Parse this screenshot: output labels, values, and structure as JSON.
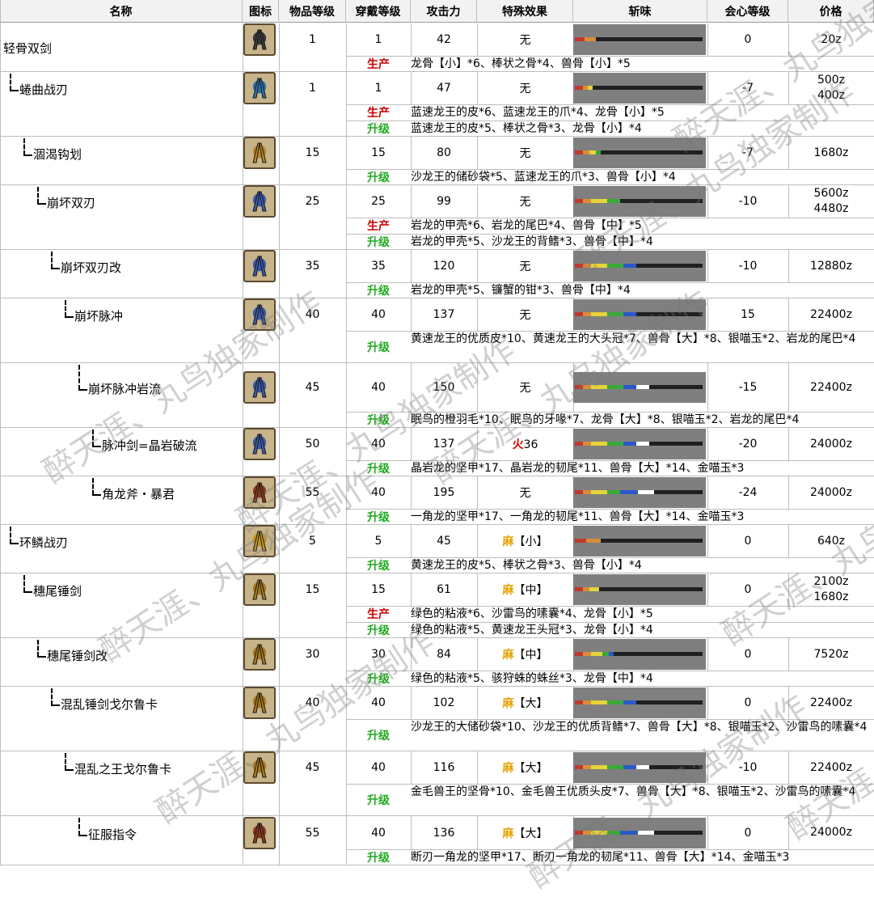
{
  "headers": [
    "名称",
    "图标",
    "物品等级",
    "穿戴等级",
    "攻击力",
    "特殊效果",
    "斩味",
    "会心等级",
    "价格"
  ],
  "colors": {
    "produce": "#cc0000",
    "upgrade": "#22aa22",
    "fire": "#dd0000",
    "paralysis": "#e6a100"
  },
  "watermark": "醉天涯、丸鸟独家制作",
  "weapons": [
    {
      "name": "轻骨双剑",
      "rarity": "1",
      "wear": "1",
      "attack": "42",
      "effect": "无",
      "effect_type": "none",
      "affinity": "0",
      "price": [
        "20z"
      ],
      "materials": [
        {
          "type": "生产",
          "text": "龙骨【小】*6、棒状之骨*4、兽骨【小】*5"
        }
      ],
      "sharpness": [
        [
          "#c0392b",
          12
        ],
        [
          "#d98c3a",
          14
        ]
      ],
      "icon": "twin-blades-icon",
      "icon_color": "#3a3a3a"
    },
    {
      "name": "蜷曲战刃",
      "rarity": "1",
      "wear": "1",
      "attack": "47",
      "effect": "无",
      "effect_type": "none",
      "affinity": "-7",
      "price": [
        "500z",
        "400z"
      ],
      "materials": [
        {
          "type": "生产",
          "text": "蓝速龙王的皮*6、蓝速龙王的爪*4、龙骨【小】*5"
        },
        {
          "type": "升级",
          "text": "蓝速龙王的皮*5、棒状之骨*3、龙骨【小】*4"
        }
      ],
      "sharpness": [
        [
          "#c0392b",
          10
        ],
        [
          "#d98c3a",
          6
        ],
        [
          "#e5d43a",
          6
        ]
      ],
      "icon": "curved-blades-icon",
      "icon_color": "#2e6fa8"
    },
    {
      "name": "涸渴钩划",
      "rarity": "15",
      "wear": "15",
      "attack": "80",
      "effect": "无",
      "effect_type": "none",
      "affinity": "-7",
      "price": [
        "1680z"
      ],
      "materials": [
        {
          "type": "升级",
          "text": "沙龙王的储砂袋*5、蓝速龙王的爪*3、兽骨【小】*4"
        }
      ],
      "sharpness": [
        [
          "#c0392b",
          10
        ],
        [
          "#d98c3a",
          8
        ],
        [
          "#e5d43a",
          8
        ],
        [
          "#3aa83a",
          6
        ]
      ],
      "icon": "hook-blades-icon",
      "icon_color": "#b8862a"
    },
    {
      "name": "崩坏双刃",
      "rarity": "25",
      "wear": "25",
      "attack": "99",
      "effect": "无",
      "effect_type": "none",
      "affinity": "-10",
      "price": [
        "5600z",
        "4480z"
      ],
      "materials": [
        {
          "type": "生产",
          "text": "岩龙的甲壳*6、岩龙的尾巴*4、兽骨【中】*5"
        },
        {
          "type": "升级",
          "text": "岩龙的甲壳*5、沙龙王的背鳍*3、兽骨【中】*4"
        }
      ],
      "sharpness": [
        [
          "#c0392b",
          10
        ],
        [
          "#d98c3a",
          10
        ],
        [
          "#e5d43a",
          20
        ],
        [
          "#3aa83a",
          16
        ]
      ],
      "icon": "wing-blades-icon",
      "icon_color": "#3a5aa8"
    },
    {
      "name": "崩坏双刃改",
      "rarity": "35",
      "wear": "35",
      "attack": "120",
      "effect": "无",
      "effect_type": "none",
      "affinity": "-10",
      "price": [
        "12880z"
      ],
      "materials": [
        {
          "type": "升级",
          "text": "岩龙的甲壳*5、镰蟹的钳*3、兽骨【中】*4"
        }
      ],
      "sharpness": [
        [
          "#c0392b",
          10
        ],
        [
          "#d98c3a",
          10
        ],
        [
          "#e5d43a",
          20
        ],
        [
          "#3aa83a",
          20
        ],
        [
          "#2a58c8",
          16
        ]
      ],
      "icon": "wing-blades-icon",
      "icon_color": "#3a5aa8"
    },
    {
      "name": "崩坏脉冲",
      "rarity": "40",
      "wear": "40",
      "attack": "137",
      "effect": "无",
      "effect_type": "none",
      "affinity": "15",
      "price": [
        "22400z"
      ],
      "materials": [
        {
          "type": "升级",
          "text": "黄速龙王的优质皮*10、黄速龙王的大头冠*7、兽骨【大】*8、银喵玉*2、岩龙的尾巴*4"
        }
      ],
      "sharpness": [
        [
          "#c0392b",
          10
        ],
        [
          "#d98c3a",
          10
        ],
        [
          "#e5d43a",
          20
        ],
        [
          "#3aa83a",
          20
        ],
        [
          "#2a58c8",
          16
        ]
      ],
      "icon": "wing-blades-icon",
      "icon_color": "#3a5aa8"
    },
    {
      "name": "崩坏脉冲岩流",
      "rarity": "45",
      "wear": "40",
      "attack": "150",
      "effect": "无",
      "effect_type": "none",
      "affinity": "-15",
      "price": [
        "22400z"
      ],
      "materials": [
        {
          "type": "升级",
          "text": "眠鸟的橙羽毛*10、眠鸟的牙喙*7、龙骨【大】*8、银喵玉*2、岩龙的尾巴*4"
        }
      ],
      "sharpness": [
        [
          "#c0392b",
          10
        ],
        [
          "#d98c3a",
          10
        ],
        [
          "#e5d43a",
          20
        ],
        [
          "#3aa83a",
          20
        ],
        [
          "#2a58c8",
          16
        ],
        [
          "#ffffff",
          16
        ]
      ],
      "icon": "wing-blades-icon",
      "icon_color": "#3a5aa8"
    },
    {
      "name": "脉冲剑=晶岩破流",
      "rarity": "50",
      "wear": "40",
      "attack": "137",
      "effect": "火36",
      "effect_type": "fire",
      "affinity": "-20",
      "price": [
        "24000z"
      ],
      "materials": [
        {
          "type": "升级",
          "text": "晶岩龙的坚甲*17、晶岩龙的韧尾*11、兽骨【大】*14、金喵玉*3"
        }
      ],
      "sharpness": [
        [
          "#c0392b",
          10
        ],
        [
          "#d98c3a",
          10
        ],
        [
          "#e5d43a",
          20
        ],
        [
          "#3aa83a",
          20
        ],
        [
          "#2a58c8",
          16
        ],
        [
          "#ffffff",
          16
        ]
      ],
      "icon": "wing-blades-icon",
      "icon_color": "#3a5aa8"
    },
    {
      "name": "角龙斧・暴君",
      "rarity": "55",
      "wear": "40",
      "attack": "195",
      "effect": "无",
      "effect_type": "none",
      "affinity": "-24",
      "price": [
        "24000z"
      ],
      "materials": [
        {
          "type": "升级",
          "text": "一角龙的坚甲*17、一角龙的韧尾*11、兽骨【大】*14、金喵玉*3"
        }
      ],
      "sharpness": [
        [
          "#c0392b",
          10
        ],
        [
          "#d98c3a",
          10
        ],
        [
          "#e5d43a",
          20
        ],
        [
          "#3aa83a",
          16
        ],
        [
          "#2a58c8",
          22
        ],
        [
          "#ffffff",
          20
        ]
      ],
      "icon": "axe-blades-icon",
      "icon_color": "#8a3a1a"
    },
    {
      "name": "环鳞战刃",
      "rarity": "5",
      "wear": "5",
      "attack": "45",
      "effect": "麻【小】",
      "effect_type": "para",
      "affinity": "0",
      "price": [
        "640z"
      ],
      "materials": [
        {
          "type": "升级",
          "text": "黄速龙王的皮*5、棒状之骨*3、兽骨【小】*4"
        }
      ],
      "sharpness": [
        [
          "#c0392b",
          14
        ],
        [
          "#d98c3a",
          18
        ]
      ],
      "icon": "ring-blades-icon",
      "icon_color": "#c8961e"
    },
    {
      "name": "穗尾锤剑",
      "rarity": "15",
      "wear": "15",
      "attack": "61",
      "effect": "麻【中】",
      "effect_type": "para",
      "affinity": "0",
      "price": [
        "2100z",
        "1680z"
      ],
      "materials": [
        {
          "type": "生产",
          "text": "绿色的粘液*6、沙雷鸟的嗉囊*4、龙骨【小】*5"
        },
        {
          "type": "升级",
          "text": "绿色的粘液*5、黄速龙王头冠*3、龙骨【小】*4"
        }
      ],
      "sharpness": [
        [
          "#c0392b",
          10
        ],
        [
          "#d98c3a",
          8
        ],
        [
          "#e5d43a",
          12
        ]
      ],
      "icon": "hammer-blades-icon",
      "icon_color": "#a8781e"
    },
    {
      "name": "穗尾锤剑改",
      "rarity": "30",
      "wear": "30",
      "attack": "84",
      "effect": "麻【中】",
      "effect_type": "para",
      "affinity": "0",
      "price": [
        "7520z"
      ],
      "materials": [
        {
          "type": "升级",
          "text": "绿色的粘液*5、骇狩蛛的蛛丝*3、龙骨【中】*4"
        }
      ],
      "sharpness": [
        [
          "#c0392b",
          10
        ],
        [
          "#d98c3a",
          10
        ],
        [
          "#e5d43a",
          14
        ],
        [
          "#3aa83a",
          8
        ],
        [
          "#2a58c8",
          6
        ]
      ],
      "icon": "hammer-blades-icon",
      "icon_color": "#a8781e"
    },
    {
      "name": "混乱锤剑戈尔鲁卡",
      "rarity": "40",
      "wear": "40",
      "attack": "102",
      "effect": "麻【大】",
      "effect_type": "para",
      "affinity": "0",
      "price": [
        "22400z"
      ],
      "materials": [
        {
          "type": "升级",
          "text": "沙龙王的大储砂袋*10、沙龙王的优质背鳍*7、兽骨【大】*8、银喵玉*2、沙雷鸟的嗉囊*4"
        }
      ],
      "sharpness": [
        [
          "#c0392b",
          10
        ],
        [
          "#d98c3a",
          10
        ],
        [
          "#e5d43a",
          20
        ],
        [
          "#3aa83a",
          20
        ],
        [
          "#2a58c8",
          16
        ]
      ],
      "icon": "hammer-blades-icon",
      "icon_color": "#a8781e"
    },
    {
      "name": "混乱之王戈尔鲁卡",
      "rarity": "45",
      "wear": "40",
      "attack": "116",
      "effect": "麻【大】",
      "effect_type": "para",
      "affinity": "-10",
      "price": [
        "22400z"
      ],
      "materials": [
        {
          "type": "升级",
          "text": "金毛兽王的坚骨*10、金毛兽王优质头皮*7、兽骨【大】*8、银喵玉*2、沙雷鸟的嗉囊*4"
        }
      ],
      "sharpness": [
        [
          "#c0392b",
          10
        ],
        [
          "#d98c3a",
          10
        ],
        [
          "#e5d43a",
          20
        ],
        [
          "#3aa83a",
          20
        ],
        [
          "#2a58c8",
          16
        ],
        [
          "#ffffff",
          16
        ]
      ],
      "icon": "hammer-blades-icon",
      "icon_color": "#a8781e"
    },
    {
      "name": "征服指令",
      "rarity": "55",
      "wear": "40",
      "attack": "136",
      "effect": "麻【大】",
      "effect_type": "para",
      "affinity": "0",
      "price": [
        "24000z"
      ],
      "materials": [
        {
          "type": "升级",
          "text": "断刃一角龙的坚甲*17、断刃一角龙的韧尾*11、兽骨【大】*14、金喵玉*3"
        }
      ],
      "sharpness": [
        [
          "#c0392b",
          10
        ],
        [
          "#d98c3a",
          10
        ],
        [
          "#e5d43a",
          20
        ],
        [
          "#3aa83a",
          16
        ],
        [
          "#2a58c8",
          22
        ],
        [
          "#ffffff",
          20
        ]
      ],
      "icon": "axe-blades-icon",
      "icon_color": "#8a3a1a"
    }
  ]
}
